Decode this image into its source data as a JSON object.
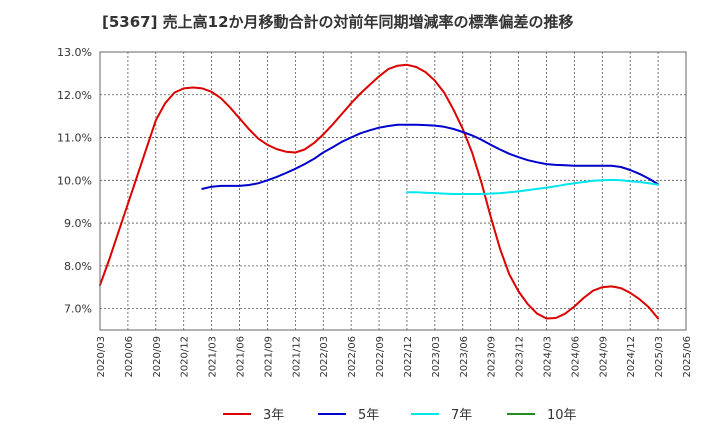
{
  "chart_data": {
    "type": "line",
    "title": "[5367]  売上高12か月移動合計の対前年同期増減率の標準偏差の推移",
    "xlabel": "",
    "ylabel": "",
    "ylim": [
      6.5,
      13.0
    ],
    "y_ticks": [
      "13.0%",
      "12.0%",
      "11.0%",
      "10.0%",
      "9.0%",
      "8.0%",
      "7.0%"
    ],
    "y_tick_values": [
      13.0,
      12.0,
      11.0,
      10.0,
      9.0,
      8.0,
      7.0
    ],
    "x_ticks": [
      "2020/03",
      "2020/06",
      "2020/09",
      "2020/12",
      "2021/03",
      "2021/06",
      "2021/09",
      "2021/12",
      "2022/03",
      "2022/06",
      "2022/09",
      "2022/12",
      "2023/03",
      "2023/06",
      "2023/09",
      "2023/12",
      "2024/03",
      "2024/06",
      "2024/09",
      "2024/12",
      "2025/03",
      "2025/06"
    ],
    "x_range": [
      "2020/03",
      "2025/06"
    ],
    "grid": true,
    "legend_position": "bottom",
    "series": [
      {
        "name": "3年",
        "color": "#dd0000",
        "points": [
          [
            "2020/03",
            7.55
          ],
          [
            "2020/04",
            8.15
          ],
          [
            "2020/05",
            8.8
          ],
          [
            "2020/06",
            9.45
          ],
          [
            "2020/07",
            10.1
          ],
          [
            "2020/08",
            10.75
          ],
          [
            "2020/09",
            11.4
          ],
          [
            "2020/10",
            11.8
          ],
          [
            "2020/11",
            12.05
          ],
          [
            "2020/12",
            12.15
          ],
          [
            "2021/01",
            12.17
          ],
          [
            "2021/02",
            12.15
          ],
          [
            "2021/03",
            12.07
          ],
          [
            "2021/04",
            11.92
          ],
          [
            "2021/05",
            11.7
          ],
          [
            "2021/06",
            11.45
          ],
          [
            "2021/07",
            11.2
          ],
          [
            "2021/08",
            10.98
          ],
          [
            "2021/09",
            10.83
          ],
          [
            "2021/10",
            10.73
          ],
          [
            "2021/11",
            10.67
          ],
          [
            "2021/12",
            10.65
          ],
          [
            "2022/01",
            10.72
          ],
          [
            "2022/02",
            10.87
          ],
          [
            "2022/03",
            11.07
          ],
          [
            "2022/04",
            11.3
          ],
          [
            "2022/05",
            11.55
          ],
          [
            "2022/06",
            11.8
          ],
          [
            "2022/07",
            12.03
          ],
          [
            "2022/08",
            12.23
          ],
          [
            "2022/09",
            12.43
          ],
          [
            "2022/10",
            12.6
          ],
          [
            "2022/11",
            12.68
          ],
          [
            "2022/12",
            12.7
          ],
          [
            "2023/01",
            12.65
          ],
          [
            "2023/02",
            12.53
          ],
          [
            "2023/03",
            12.33
          ],
          [
            "2023/04",
            12.05
          ],
          [
            "2023/05",
            11.65
          ],
          [
            "2023/06",
            11.2
          ],
          [
            "2023/07",
            10.65
          ],
          [
            "2023/08",
            9.95
          ],
          [
            "2023/09",
            9.15
          ],
          [
            "2023/10",
            8.4
          ],
          [
            "2023/11",
            7.8
          ],
          [
            "2023/12",
            7.4
          ],
          [
            "2024/01",
            7.1
          ],
          [
            "2024/02",
            6.88
          ],
          [
            "2024/03",
            6.77
          ],
          [
            "2024/04",
            6.78
          ],
          [
            "2024/05",
            6.88
          ],
          [
            "2024/06",
            7.05
          ],
          [
            "2024/07",
            7.25
          ],
          [
            "2024/08",
            7.42
          ],
          [
            "2024/09",
            7.5
          ],
          [
            "2024/10",
            7.52
          ],
          [
            "2024/11",
            7.48
          ],
          [
            "2024/12",
            7.37
          ],
          [
            "2025/01",
            7.22
          ],
          [
            "2025/02",
            7.03
          ],
          [
            "2025/03",
            6.77
          ]
        ]
      },
      {
        "name": "5年",
        "color": "#0000cc",
        "points": [
          [
            "2021/02",
            9.8
          ],
          [
            "2021/03",
            9.85
          ],
          [
            "2021/04",
            9.87
          ],
          [
            "2021/05",
            9.87
          ],
          [
            "2021/06",
            9.87
          ],
          [
            "2021/07",
            9.89
          ],
          [
            "2021/08",
            9.93
          ],
          [
            "2021/09",
            10.0
          ],
          [
            "2021/10",
            10.08
          ],
          [
            "2021/11",
            10.17
          ],
          [
            "2021/12",
            10.27
          ],
          [
            "2022/01",
            10.38
          ],
          [
            "2022/02",
            10.5
          ],
          [
            "2022/03",
            10.65
          ],
          [
            "2022/04",
            10.77
          ],
          [
            "2022/05",
            10.9
          ],
          [
            "2022/06",
            11.0
          ],
          [
            "2022/07",
            11.1
          ],
          [
            "2022/08",
            11.17
          ],
          [
            "2022/09",
            11.23
          ],
          [
            "2022/10",
            11.27
          ],
          [
            "2022/11",
            11.3
          ],
          [
            "2022/12",
            11.3
          ],
          [
            "2023/01",
            11.3
          ],
          [
            "2023/02",
            11.29
          ],
          [
            "2023/03",
            11.28
          ],
          [
            "2023/04",
            11.25
          ],
          [
            "2023/05",
            11.2
          ],
          [
            "2023/06",
            11.13
          ],
          [
            "2023/07",
            11.05
          ],
          [
            "2023/08",
            10.95
          ],
          [
            "2023/09",
            10.83
          ],
          [
            "2023/10",
            10.72
          ],
          [
            "2023/11",
            10.62
          ],
          [
            "2023/12",
            10.54
          ],
          [
            "2024/01",
            10.47
          ],
          [
            "2024/02",
            10.42
          ],
          [
            "2024/03",
            10.38
          ],
          [
            "2024/04",
            10.36
          ],
          [
            "2024/05",
            10.35
          ],
          [
            "2024/06",
            10.34
          ],
          [
            "2024/07",
            10.34
          ],
          [
            "2024/08",
            10.34
          ],
          [
            "2024/09",
            10.34
          ],
          [
            "2024/10",
            10.34
          ],
          [
            "2024/11",
            10.31
          ],
          [
            "2024/12",
            10.24
          ],
          [
            "2025/01",
            10.15
          ],
          [
            "2025/02",
            10.04
          ],
          [
            "2025/03",
            9.91
          ]
        ]
      },
      {
        "name": "7年",
        "color": "#00e5ee",
        "points": [
          [
            "2022/12",
            9.72
          ],
          [
            "2023/01",
            9.72
          ],
          [
            "2023/02",
            9.71
          ],
          [
            "2023/03",
            9.7
          ],
          [
            "2023/04",
            9.69
          ],
          [
            "2023/05",
            9.68
          ],
          [
            "2023/06",
            9.68
          ],
          [
            "2023/07",
            9.68
          ],
          [
            "2023/08",
            9.68
          ],
          [
            "2023/09",
            9.69
          ],
          [
            "2023/10",
            9.7
          ],
          [
            "2023/11",
            9.72
          ],
          [
            "2023/12",
            9.74
          ],
          [
            "2024/01",
            9.77
          ],
          [
            "2024/02",
            9.8
          ],
          [
            "2024/03",
            9.83
          ],
          [
            "2024/04",
            9.86
          ],
          [
            "2024/05",
            9.9
          ],
          [
            "2024/06",
            9.93
          ],
          [
            "2024/07",
            9.96
          ],
          [
            "2024/08",
            9.99
          ],
          [
            "2024/09",
            10.0
          ],
          [
            "2024/10",
            10.01
          ],
          [
            "2024/11",
            10.0
          ],
          [
            "2024/12",
            9.98
          ],
          [
            "2025/01",
            9.96
          ],
          [
            "2025/02",
            9.93
          ],
          [
            "2025/03",
            9.9
          ]
        ]
      },
      {
        "name": "10年",
        "color": "#228b22",
        "points": []
      }
    ]
  }
}
